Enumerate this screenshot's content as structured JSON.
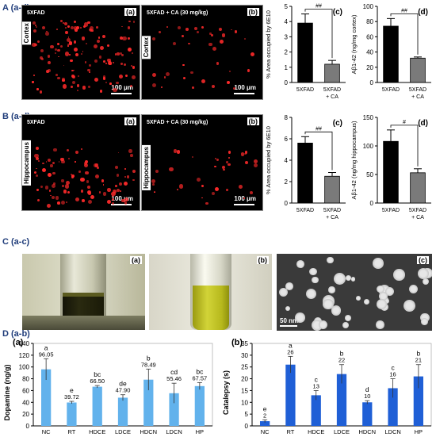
{
  "rows": {
    "A": "A (a-d)",
    "B": "B (a-d)",
    "C": "C (a-c)",
    "D": "D (a-b)"
  },
  "micro": {
    "label_ctrl": "5XFAD",
    "label_treat": "5XFAD + CA (30 mg/kg)",
    "cortex": "Cortex",
    "hippocampus": "Hippocampus",
    "scale": "100 μm",
    "a": "(a)",
    "b": "(b)"
  },
  "photos": {
    "a": "(a)",
    "b": "(b)",
    "c": "(c)",
    "scale": "50 nm"
  },
  "chart_data": [
    {
      "id": "Ac",
      "type": "bar",
      "panel": "(c)",
      "categories": [
        "5XFAD",
        "5XFAD + CA"
      ],
      "values": [
        3.9,
        1.2
      ],
      "errors": [
        0.6,
        0.25
      ],
      "ylabel": "% Area occupied by 6E10",
      "ylim": [
        0,
        5
      ],
      "yticks": [
        0,
        1,
        2,
        3,
        4,
        5
      ],
      "sig": "##",
      "colors": [
        "#000000",
        "#7a7a7a"
      ]
    },
    {
      "id": "Ad",
      "type": "bar",
      "panel": "(d)",
      "categories": [
        "5XFAD",
        "5XFAD + CA"
      ],
      "values": [
        74,
        32
      ],
      "errors": [
        10,
        1.5
      ],
      "ylabel": "Aβ1-42 (ng/mg cortex)",
      "ylim": [
        0,
        100
      ],
      "yticks": [
        0,
        20,
        40,
        60,
        80,
        100
      ],
      "sig": "##",
      "colors": [
        "#000000",
        "#7a7a7a"
      ]
    },
    {
      "id": "Bc",
      "type": "bar",
      "panel": "(c)",
      "categories": [
        "5XFAD",
        "5XFAD + CA"
      ],
      "values": [
        5.6,
        2.5
      ],
      "errors": [
        0.6,
        0.35
      ],
      "ylabel": "% Area occupied by 6E10",
      "ylim": [
        0,
        8
      ],
      "yticks": [
        0,
        2,
        4,
        6,
        8
      ],
      "sig": "##",
      "colors": [
        "#000000",
        "#7a7a7a"
      ]
    },
    {
      "id": "Bd",
      "type": "bar",
      "panel": "(d)",
      "categories": [
        "5XFAD",
        "5XFAD + CA"
      ],
      "values": [
        108,
        53
      ],
      "errors": [
        20,
        7
      ],
      "ylabel": "Aβ1-42 (ng/mg hippocampus)",
      "ylim": [
        0,
        150
      ],
      "yticks": [
        0,
        50,
        100,
        150
      ],
      "sig": "#",
      "colors": [
        "#000000",
        "#7a7a7a"
      ]
    },
    {
      "id": "Da",
      "type": "bar",
      "panel": "(a)",
      "categories": [
        "NC",
        "RT",
        "HDCE",
        "LDCE",
        "HDCN",
        "LDCN",
        "HP"
      ],
      "values": [
        96.05,
        39.72,
        66.5,
        47.9,
        78.49,
        55.46,
        67.57
      ],
      "value_labels": [
        "96.05",
        "39.72",
        "66.50",
        "47.90",
        "78.49",
        "55.46",
        "67.57"
      ],
      "letters": [
        "a",
        "e",
        "bc",
        "de",
        "b",
        "cd",
        "bc"
      ],
      "errors": [
        18,
        2,
        2,
        5,
        18,
        17,
        6
      ],
      "ylabel": "Dopamine (ng/g)",
      "ylim": [
        0,
        140
      ],
      "yticks": [
        0,
        20,
        40,
        60,
        80,
        100,
        120,
        140
      ],
      "colors": [
        "#62b2ec"
      ]
    },
    {
      "id": "Db",
      "type": "bar",
      "panel": "(b)",
      "categories": [
        "NC",
        "RT",
        "HDCE",
        "LDCE",
        "HDCN",
        "LDCN",
        "HP"
      ],
      "values": [
        2,
        26,
        13,
        22,
        10,
        16,
        21
      ],
      "value_labels": [
        "2",
        "26",
        "13",
        "22",
        "10",
        "16",
        "21"
      ],
      "letters": [
        "e",
        "a",
        "c",
        "b",
        "d",
        "c",
        "b"
      ],
      "errors": [
        0.6,
        3.5,
        2,
        4,
        0.7,
        4,
        5
      ],
      "ylabel": "Catalepsy (s)",
      "ylim": [
        0,
        35
      ],
      "yticks": [
        0,
        5,
        10,
        15,
        20,
        25,
        30,
        35
      ],
      "colors": [
        "#1f5fd6"
      ]
    }
  ]
}
